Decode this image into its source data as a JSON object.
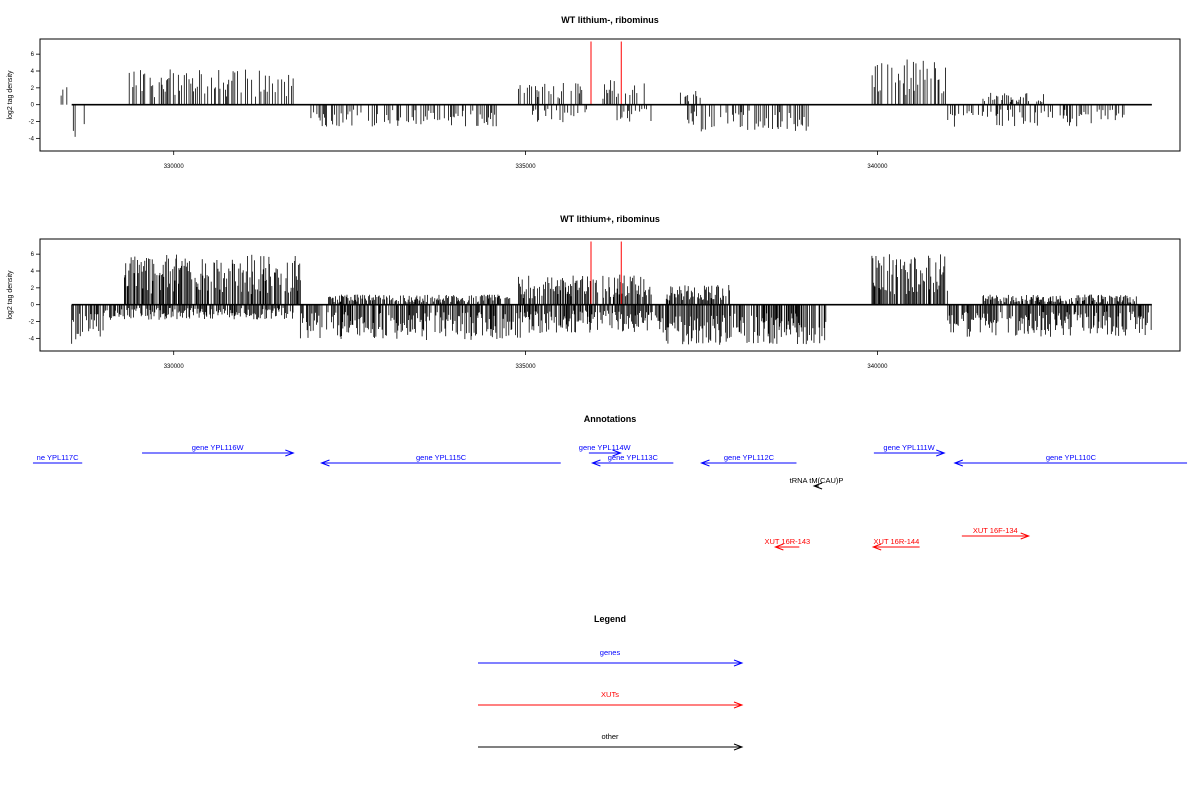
{
  "chart_data": [
    {
      "type": "bar",
      "title": "WT lithium-, ribominus",
      "ylabel": "log2 tag density",
      "xlabel": "",
      "xlim": [
        328100,
        344300
      ],
      "ylim": [
        -5.5,
        7.8
      ],
      "x_ticks": [
        330000,
        335000,
        340000
      ],
      "x_tick_labels": [
        "330000",
        "335000",
        "340000"
      ],
      "y_ticks": [
        -4,
        -2,
        0,
        2,
        4,
        6
      ],
      "y_tick_labels": [
        "-4",
        "-2",
        "0",
        "2",
        "4",
        "6"
      ],
      "positive_regions": [
        [
          328400,
          328500,
          2
        ],
        [
          329300,
          331700,
          3.5
        ],
        [
          334900,
          335800,
          2.5
        ],
        [
          336100,
          336700,
          2.5
        ],
        [
          337200,
          337500,
          1.5
        ],
        [
          339900,
          341000,
          4.5
        ],
        [
          341500,
          342400,
          1.2
        ]
      ],
      "negative_regions": [
        [
          328550,
          328730,
          -3.5
        ],
        [
          331950,
          334600,
          -2.2
        ],
        [
          335100,
          335900,
          -1.8
        ],
        [
          336300,
          336800,
          -1.8
        ],
        [
          337300,
          339100,
          -2.8
        ],
        [
          341000,
          343600,
          -2.2
        ]
      ],
      "highlights": [
        {
          "x": 335930,
          "y": 7.5
        },
        {
          "x": 336360,
          "y": 7.5
        }
      ],
      "series_colors": {
        "bars": "#000000",
        "highlights": "#ff0000"
      }
    },
    {
      "type": "bar",
      "title": "WT lithium+, ribominus",
      "ylabel": "log2 tag density",
      "xlabel": "",
      "xlim": [
        328100,
        344300
      ],
      "ylim": [
        -5.5,
        7.8
      ],
      "x_ticks": [
        330000,
        335000,
        340000
      ],
      "x_tick_labels": [
        "330000",
        "335000",
        "340000"
      ],
      "y_ticks": [
        -4,
        -2,
        0,
        2,
        4,
        6
      ],
      "y_tick_labels": [
        "-4",
        "-2",
        "0",
        "2",
        "4",
        "6"
      ],
      "positive_regions": [
        [
          329300,
          331800,
          5
        ],
        [
          332200,
          334800,
          1
        ],
        [
          334900,
          336800,
          3
        ],
        [
          337000,
          337900,
          2
        ],
        [
          339900,
          341000,
          5
        ],
        [
          341500,
          343700,
          1
        ]
      ],
      "negative_regions": [
        [
          328550,
          329000,
          -4
        ],
        [
          329000,
          331700,
          -1.5
        ],
        [
          331800,
          335000,
          -3.5
        ],
        [
          335000,
          337000,
          -2.8
        ],
        [
          337000,
          339300,
          -4
        ],
        [
          341000,
          343900,
          -3.2
        ]
      ],
      "highlights": [
        {
          "x": 335930,
          "y": 7.5
        },
        {
          "x": 336360,
          "y": 7.5
        }
      ],
      "series_colors": {
        "bars": "#000000",
        "highlights": "#ff0000"
      }
    }
  ],
  "annotations": {
    "title": "Annotations",
    "features": [
      {
        "label": "ne YPL117C",
        "start": 328000,
        "end": 328700,
        "row": 1,
        "dir": "none",
        "color": "#0000ff"
      },
      {
        "label": "gene YPL116W",
        "start": 329550,
        "end": 331700,
        "row": 0,
        "dir": "right",
        "color": "#0000ff"
      },
      {
        "label": "gene YPL115C",
        "start": 332100,
        "end": 335500,
        "row": 1,
        "dir": "left",
        "color": "#0000ff"
      },
      {
        "label": "gene YPL114W",
        "start": 335900,
        "end": 336350,
        "row": 0,
        "dir": "right",
        "color": "#0000ff"
      },
      {
        "label": "gene YPL113C",
        "start": 335950,
        "end": 337100,
        "row": 1,
        "dir": "left",
        "color": "#0000ff"
      },
      {
        "label": "gene YPL112C",
        "start": 337500,
        "end": 338850,
        "row": 1,
        "dir": "left",
        "color": "#0000ff"
      },
      {
        "label": "gene YPL111W",
        "start": 339950,
        "end": 340950,
        "row": 0,
        "dir": "right",
        "color": "#0000ff"
      },
      {
        "label": "gene YPL110C",
        "start": 341100,
        "end": 344400,
        "row": 1,
        "dir": "left",
        "color": "#0000ff"
      },
      {
        "label": "tRNA tM(CAU)P",
        "start": 339100,
        "end": 339170,
        "row": 2,
        "dir": "left",
        "color": "#000000"
      },
      {
        "label": "XUT 16R-143",
        "start": 338550,
        "end": 338890,
        "row": 4,
        "dir": "left",
        "color": "#ff0000"
      },
      {
        "label": "XUT 16R-144",
        "start": 339940,
        "end": 340600,
        "row": 4,
        "dir": "left",
        "color": "#ff0000"
      },
      {
        "label": "XUT 16F-134",
        "start": 341200,
        "end": 342150,
        "row": 3,
        "dir": "right",
        "color": "#ff0000"
      }
    ]
  },
  "legend": {
    "title": "Legend",
    "items": [
      {
        "label": "genes",
        "color": "#0000ff"
      },
      {
        "label": "XUTs",
        "color": "#ff0000"
      },
      {
        "label": "other",
        "color": "#000000"
      }
    ]
  }
}
